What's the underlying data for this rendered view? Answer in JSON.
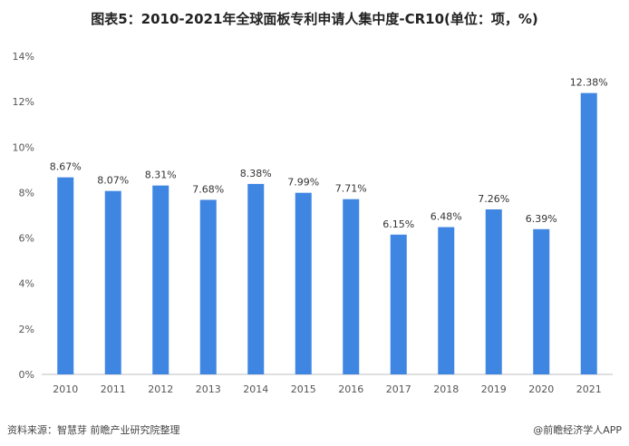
{
  "header": {
    "title": "图表5：2010-2021年全球面板专利申请人集中度-CR10(单位：项，%)"
  },
  "chart_data": {
    "type": "bar",
    "title": "图表5：2010-2021年全球面板专利申请人集中度-CR10(单位：项，%)",
    "xlabel": "",
    "ylabel": "",
    "categories": [
      "2010",
      "2011",
      "2012",
      "2013",
      "2014",
      "2015",
      "2016",
      "2017",
      "2018",
      "2019",
      "2020",
      "2021"
    ],
    "values": [
      8.67,
      8.07,
      8.31,
      7.68,
      8.38,
      7.99,
      7.71,
      6.15,
      6.48,
      7.26,
      6.39,
      12.38
    ],
    "data_labels": [
      "8.67%",
      "8.07%",
      "8.31%",
      "7.68%",
      "8.38%",
      "7.99%",
      "7.71%",
      "6.15%",
      "6.48%",
      "7.26%",
      "6.39%",
      "12.38%"
    ],
    "y_ticks": [
      "0%",
      "2%",
      "4%",
      "6%",
      "8%",
      "10%",
      "12%",
      "14%"
    ],
    "ylim": [
      0,
      14
    ],
    "grid": false,
    "legend": "none",
    "bar_color": "#3f86e3"
  },
  "footer": {
    "source": "资料来源：智慧芽 前瞻产业研究院整理",
    "brand": "@前瞻经济学人APP"
  }
}
